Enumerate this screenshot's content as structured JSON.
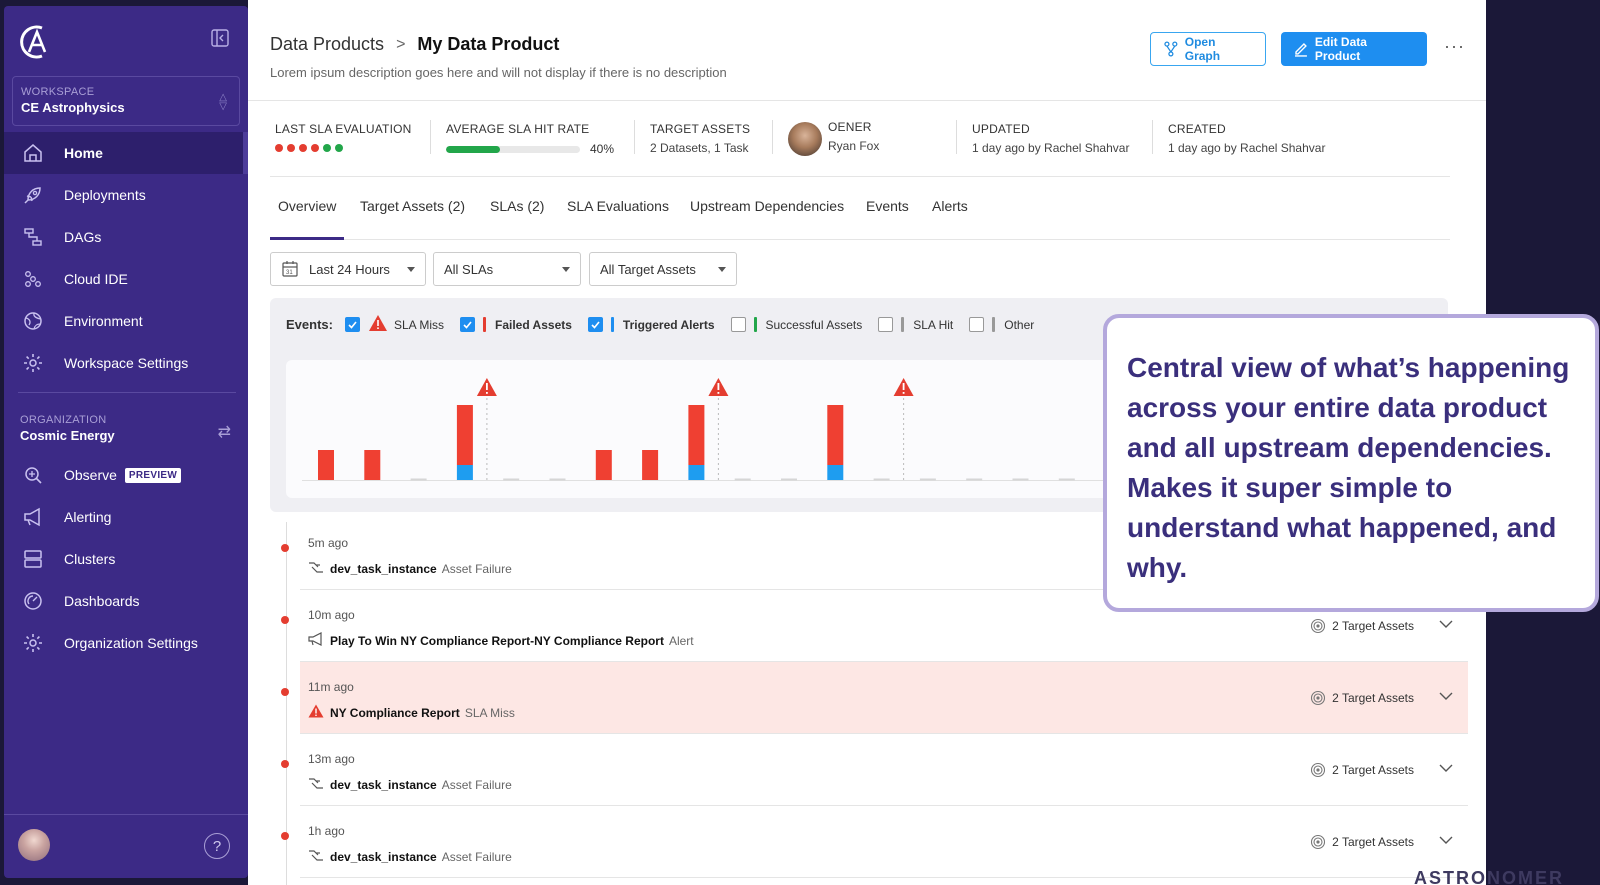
{
  "sidebar": {
    "workspace_label": "WORKSPACE",
    "workspace_name": "CE Astrophysics",
    "nav": [
      {
        "label": "Home",
        "icon": "home-icon"
      },
      {
        "label": "Deployments",
        "icon": "rocket-icon"
      },
      {
        "label": "DAGs",
        "icon": "dag-icon"
      },
      {
        "label": "Cloud IDE",
        "icon": "cloud-ide-icon"
      },
      {
        "label": "Environment",
        "icon": "globe-icon"
      },
      {
        "label": "Workspace Settings",
        "icon": "gear-icon"
      }
    ],
    "org_label": "ORGANIZATION",
    "org_name": "Cosmic Energy",
    "org_nav": [
      {
        "label": "Observe",
        "icon": "observe-icon",
        "badge": "PREVIEW"
      },
      {
        "label": "Alerting",
        "icon": "megaphone-icon"
      },
      {
        "label": "Clusters",
        "icon": "clusters-icon"
      },
      {
        "label": "Dashboards",
        "icon": "dashboard-icon"
      },
      {
        "label": "Organization Settings",
        "icon": "gear-icon"
      }
    ],
    "help": "?"
  },
  "header": {
    "breadcrumb_parent": "Data Products",
    "breadcrumb_sep": ">",
    "title": "My Data Product",
    "description": "Lorem ipsum description goes here and will not display if there is no description",
    "open_graph": "Open Graph",
    "edit": "Edit Data Product",
    "more": "···"
  },
  "stats": {
    "last_sla_label": "LAST SLA EVALUATION",
    "last_sla_dots": [
      "#e43d30",
      "#e43d30",
      "#e43d30",
      "#e43d30",
      "#22a64a",
      "#22a64a"
    ],
    "avg_label": "AVERAGE SLA HIT RATE",
    "avg_value": "40%",
    "avg_fraction": 0.4,
    "target_label": "TARGET ASSETS",
    "target_value": "2 Datasets, 1 Task",
    "owner_label": "OENER",
    "owner_value": "Ryan Fox",
    "updated_label": "UPDATED",
    "updated_value": "1 day ago by Rachel Shahvar",
    "created_label": "CREATED",
    "created_value": "1 day ago by Rachel Shahvar"
  },
  "tabs": [
    "Overview",
    "Target Assets (2)",
    "SLAs (2)",
    "SLA Evaluations",
    "Upstream Dependencies",
    "Events",
    "Alerts"
  ],
  "filters": {
    "time": "Last 24 Hours",
    "slas": "All SLAs",
    "assets": "All Target Assets"
  },
  "events": {
    "title": "Events:",
    "legend": [
      {
        "label": "SLA Miss",
        "checked": true,
        "color": "#e43d30",
        "kind": "warn"
      },
      {
        "label": "Failed Assets",
        "checked": true,
        "color": "#e43d30",
        "kind": "bar"
      },
      {
        "label": "Triggered Alerts",
        "checked": true,
        "color": "#1e8ef0",
        "kind": "bar"
      },
      {
        "label": "Successful Assets",
        "checked": false,
        "color": "#22a64a",
        "kind": "bar"
      },
      {
        "label": "SLA Hit",
        "checked": false,
        "color": "#999999",
        "kind": "bar"
      },
      {
        "label": "Other",
        "checked": false,
        "color": "#999999",
        "kind": "bar"
      }
    ]
  },
  "chart_data": {
    "type": "bar",
    "series": [
      {
        "name": "Failed Assets",
        "values": [
          1,
          1,
          0,
          2,
          0,
          0,
          1,
          1,
          2,
          0,
          0,
          2,
          0,
          0,
          0,
          0,
          0,
          0,
          0
        ]
      },
      {
        "name": "Triggered Alerts",
        "values": [
          0,
          0,
          0,
          0.5,
          0,
          0,
          0,
          0,
          0.5,
          0,
          0,
          0.5,
          0,
          0,
          0,
          0,
          0,
          0,
          0
        ]
      }
    ],
    "sla_miss_at": [
      3,
      8,
      12
    ]
  },
  "rows": [
    {
      "time": "5m ago",
      "icon": "task-icon",
      "name": "dev_task_instance",
      "type": "Asset Failure",
      "right": "",
      "alert": false
    },
    {
      "time": "10m ago",
      "icon": "megaphone-icon",
      "name": "Play To Win NY Compliance Report-NY Compliance Report",
      "type": "Alert",
      "right": "2 Target Assets",
      "alert": false
    },
    {
      "time": "11m ago",
      "icon": "warning-icon",
      "name": "NY Compliance Report",
      "type": "SLA Miss",
      "right": "2 Target Assets",
      "alert": true
    },
    {
      "time": "13m ago",
      "icon": "task-icon",
      "name": "dev_task_instance",
      "type": "Asset Failure",
      "right": "2 Target Assets",
      "alert": false
    },
    {
      "time": "1h ago",
      "icon": "task-icon",
      "name": "dev_task_instance",
      "type": "Asset Failure",
      "right": "2 Target Assets",
      "alert": false
    }
  ],
  "callout": "Central view of what’s happening across your entire data product and all upstream dependencies. Makes it super simple to understand what happened, and why.",
  "watermark": "ASTRONOMER"
}
